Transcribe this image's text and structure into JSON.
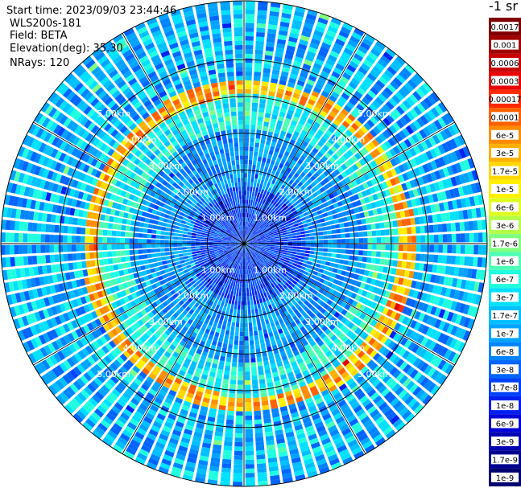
{
  "info": {
    "start_time": "Start time: 2023/09/03 23:44:46",
    "instrument": "WLS200s-181",
    "field": "Field: BETA",
    "elevation": "Elevation(deg): 35.30",
    "nrays": "NRays: 120"
  },
  "colorbar": {
    "title": "-1 sr",
    "levels": [
      {
        "label": "0.0017",
        "color": "#800000"
      },
      {
        "label": "0.001",
        "color": "#a00000"
      },
      {
        "label": "0.0006",
        "color": "#c80000"
      },
      {
        "label": "0.0003",
        "color": "#e80000"
      },
      {
        "label": "0.00017",
        "color": "#ff2a00"
      },
      {
        "label": "0.0001",
        "color": "#ff6000"
      },
      {
        "label": "6e-5",
        "color": "#ff8c00"
      },
      {
        "label": "3e-5",
        "color": "#ffb000"
      },
      {
        "label": "1.7e-5",
        "color": "#ffd800"
      },
      {
        "label": "1e-5",
        "color": "#fff000"
      },
      {
        "label": "6e-6",
        "color": "#e0ff20"
      },
      {
        "label": "3e-6",
        "color": "#b4ff4a"
      },
      {
        "label": "1.7e-6",
        "color": "#80ff80"
      },
      {
        "label": "1e-6",
        "color": "#4cffb4"
      },
      {
        "label": "6e-7",
        "color": "#20ffe0"
      },
      {
        "label": "3e-7",
        "color": "#00e0ff"
      },
      {
        "label": "1.7e-7",
        "color": "#00c0ff"
      },
      {
        "label": "1e-7",
        "color": "#00a4ff"
      },
      {
        "label": "6e-8",
        "color": "#0084ff"
      },
      {
        "label": "3e-8",
        "color": "#0064ff"
      },
      {
        "label": "1.7e-8",
        "color": "#0040ff"
      },
      {
        "label": "1e-8",
        "color": "#0020f0"
      },
      {
        "label": "6e-9",
        "color": "#0000d8"
      },
      {
        "label": "3e-9",
        "color": "#0000b0"
      },
      {
        "label": "1.7e-9",
        "color": "#000090"
      },
      {
        "label": "1e-9",
        "color": "#000070"
      }
    ]
  },
  "chart_data": {
    "type": "heatmap",
    "projection": "polar PPI",
    "field": "BETA",
    "units": "-1 sr",
    "nrays": 120,
    "azimuth_spacing_deg": 3,
    "max_range_km": 6.6,
    "range_rings_km": [
      1,
      2,
      3,
      4,
      5
    ],
    "range_ring_labels": [
      "1.00km",
      "2.00km",
      "3.00km",
      "4.00km",
      "5.00km"
    ],
    "spokes_every_deg": 30,
    "field_summary": [
      {
        "range_km": [
          0.0,
          1.6
        ],
        "beta": "1e-8 to 3e-8"
      },
      {
        "range_km": [
          1.6,
          3.2
        ],
        "beta": "3e-8 to 1.7e-7"
      },
      {
        "range_km": [
          3.2,
          4.1
        ],
        "beta": "1.7e-7 to 1e-6"
      },
      {
        "range_km": [
          4.1,
          4.5
        ],
        "beta": "1e-5 to 0.0001"
      },
      {
        "range_km": [
          4.5,
          6.6
        ],
        "beta": "3e-8 to 6e-7"
      }
    ]
  }
}
